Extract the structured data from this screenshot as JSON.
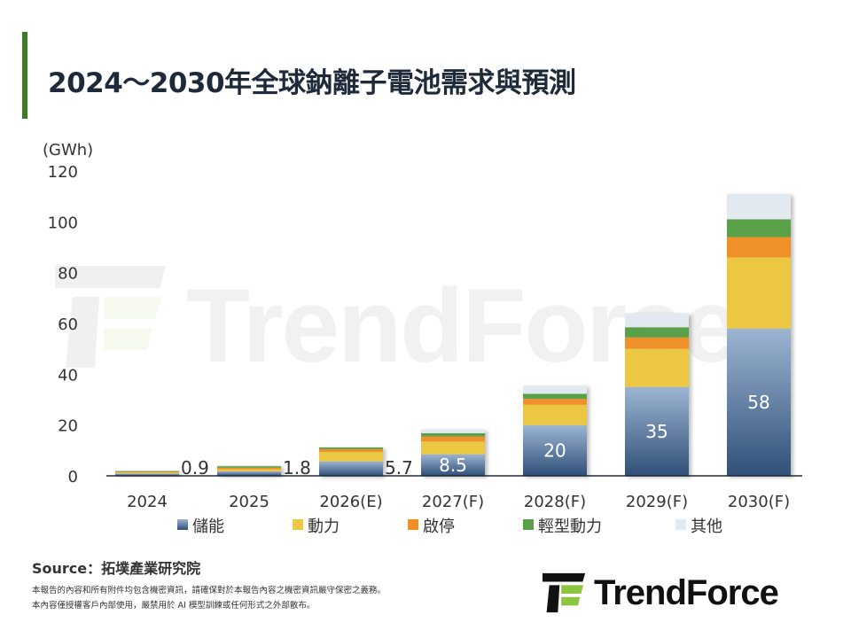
{
  "title": "2024～2030年全球鈉離子電池需求與預測",
  "source": "Source：拓墣產業研究院",
  "notes": [
    "本報告的內容和所有附件均包含機密資訊，請確保對於本報告內容之機密資訊嚴守保密之義務。",
    "本內容僅授權客戶內部使用，嚴禁用於 AI 模型訓練或任何形式之外部散布。"
  ],
  "brand": "TrendForce",
  "chart_data": {
    "type": "bar",
    "stacked": true,
    "unit": "(GWh)",
    "categories": [
      "2024",
      "2025",
      "2026(E)",
      "2027(F)",
      "2028(F)",
      "2029(F)",
      "2030(F)"
    ],
    "ylim": [
      0,
      120
    ],
    "yticks": [
      0,
      20,
      40,
      60,
      80,
      100,
      120
    ],
    "grid": false,
    "legend_position": "bottom",
    "series": [
      {
        "name": "儲能",
        "color": "#4a6f9c",
        "values": [
          0.9,
          1.8,
          5.7,
          8.5,
          20,
          35,
          58
        ],
        "labels": [
          "0.9",
          "1.8",
          "5.7",
          "8.5",
          "20",
          "35",
          "58"
        ]
      },
      {
        "name": "動力",
        "color": "#ecc843",
        "values": [
          0.4,
          0.8,
          3.7,
          5,
          8,
          15,
          28
        ]
      },
      {
        "name": "啟停",
        "color": "#f0902a",
        "values": [
          0.3,
          0.6,
          1.1,
          2,
          2.3,
          4.5,
          8
        ]
      },
      {
        "name": "輕型動力",
        "color": "#5aa04a",
        "values": [
          0.3,
          0.6,
          0.7,
          1.3,
          2,
          4,
          7
        ]
      },
      {
        "name": "其他",
        "color": "#e2e9f1",
        "values": [
          0.1,
          0.4,
          0.2,
          1.5,
          3.2,
          5.5,
          10
        ]
      }
    ]
  }
}
